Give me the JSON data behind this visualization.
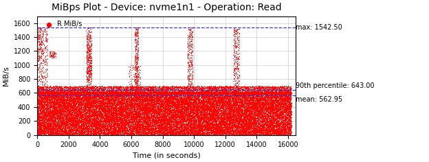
{
  "title": "MiBps Plot - Device: nvme1n1 - Operation: Read",
  "xlabel": "Time (in seconds)",
  "ylabel": "MiB/s",
  "xlim": [
    0,
    16500
  ],
  "ylim": [
    0,
    1700
  ],
  "yticks": [
    0,
    200,
    400,
    600,
    800,
    1000,
    1200,
    1400,
    1600
  ],
  "xticks": [
    0,
    2000,
    4000,
    6000,
    8000,
    10000,
    12000,
    14000,
    16000
  ],
  "max_line": 1542.5,
  "percentile_line": 643.0,
  "mean_line": 562.95,
  "max_label": "max: 1542.50",
  "percentile_label": "90th percentile: 643.00",
  "mean_label": "mean: 562.95",
  "legend_label": "R MiB/s",
  "dot_color": "#FF0000",
  "line_color": "#3333CC",
  "background_color": "#FFFFFF",
  "grid_color": "#CCCCCC",
  "title_fontsize": 10,
  "axis_fontsize": 8,
  "annotation_fontsize": 7,
  "tick_fontsize": 7,
  "burst_centers": [
    200,
    3300,
    6350,
    9750,
    12700
  ],
  "burst_widths": [
    900,
    400,
    300,
    400,
    400
  ]
}
